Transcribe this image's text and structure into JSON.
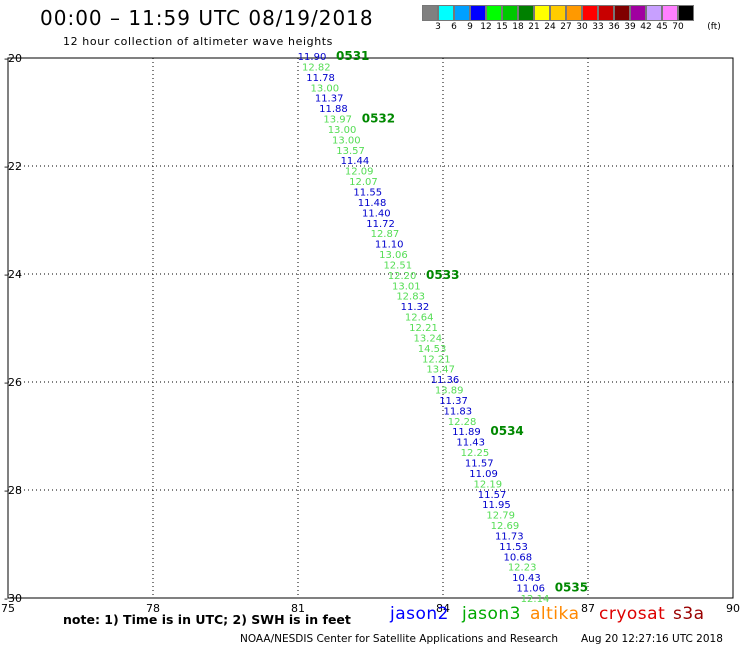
{
  "header": {
    "title": "00:00 – 11:59 UTC 08/19/2018",
    "subtitle": "12 hour collection of altimeter wave heights"
  },
  "scale": {
    "unit": "(ft)",
    "labels": [
      "3",
      "6",
      "9",
      "12",
      "15",
      "18",
      "21",
      "24",
      "27",
      "30",
      "33",
      "36",
      "39",
      "42",
      "45",
      "70"
    ],
    "colors": [
      "#808080",
      "#00ffff",
      "#00a0ff",
      "#0000ff",
      "#00ff00",
      "#00c800",
      "#008000",
      "#ffff00",
      "#ffcc00",
      "#ff9900",
      "#ff0000",
      "#c80000",
      "#800000",
      "#a000a0",
      "#c8a0ff",
      "#ff80ff",
      "#000000"
    ]
  },
  "map": {
    "lon_ticks": [
      "75",
      "78",
      "81",
      "84",
      "87",
      "90"
    ],
    "lat_ticks": [
      "-20",
      "-22",
      "-24",
      "-26",
      "-28",
      "-30"
    ],
    "lon_range": [
      75,
      90
    ],
    "lat_range": [
      -20,
      -30
    ],
    "colors": {
      "jason2": "#0000cc",
      "jason3": "#55dd55",
      "pass_label": "#008800"
    },
    "observations": [
      {
        "v": "11.90",
        "c": "j2"
      },
      {
        "v": "12.82",
        "c": "j3"
      },
      {
        "v": "11.78",
        "c": "j2"
      },
      {
        "v": "13.00",
        "c": "j3"
      },
      {
        "v": "11.37",
        "c": "j2"
      },
      {
        "v": "11.88",
        "c": "j2"
      },
      {
        "v": "13.97",
        "c": "j3"
      },
      {
        "v": "13.00",
        "c": "j3"
      },
      {
        "v": "13.00",
        "c": "j3"
      },
      {
        "v": "13.57",
        "c": "j3"
      },
      {
        "v": "11.44",
        "c": "j2"
      },
      {
        "v": "12.09",
        "c": "j3"
      },
      {
        "v": "12.07",
        "c": "j3"
      },
      {
        "v": "11.55",
        "c": "j2"
      },
      {
        "v": "11.48",
        "c": "j2"
      },
      {
        "v": "11.40",
        "c": "j2"
      },
      {
        "v": "11.72",
        "c": "j2"
      },
      {
        "v": "12.87",
        "c": "j3"
      },
      {
        "v": "11.10",
        "c": "j2"
      },
      {
        "v": "13.06",
        "c": "j3"
      },
      {
        "v": "12.51",
        "c": "j3"
      },
      {
        "v": "12.20",
        "c": "j3"
      },
      {
        "v": "13.01",
        "c": "j3"
      },
      {
        "v": "12.83",
        "c": "j3"
      },
      {
        "v": "11.32",
        "c": "j2"
      },
      {
        "v": "12.64",
        "c": "j3"
      },
      {
        "v": "12.21",
        "c": "j3"
      },
      {
        "v": "13.24",
        "c": "j3"
      },
      {
        "v": "14.53",
        "c": "j3"
      },
      {
        "v": "12.21",
        "c": "j3"
      },
      {
        "v": "13.47",
        "c": "j3"
      },
      {
        "v": "11.36",
        "c": "j2"
      },
      {
        "v": "13.89",
        "c": "j3"
      },
      {
        "v": "11.37",
        "c": "j2"
      },
      {
        "v": "11.83",
        "c": "j2"
      },
      {
        "v": "12.28",
        "c": "j3"
      },
      {
        "v": "11.89",
        "c": "j2"
      },
      {
        "v": "11.43",
        "c": "j2"
      },
      {
        "v": "12.25",
        "c": "j3"
      },
      {
        "v": "11.57",
        "c": "j2"
      },
      {
        "v": "11.09",
        "c": "j2"
      },
      {
        "v": "12.19",
        "c": "j3"
      },
      {
        "v": "11.57",
        "c": "j2"
      },
      {
        "v": "11.95",
        "c": "j2"
      },
      {
        "v": "12.79",
        "c": "j3"
      },
      {
        "v": "12.69",
        "c": "j3"
      },
      {
        "v": "11.73",
        "c": "j2"
      },
      {
        "v": "11.53",
        "c": "j2"
      },
      {
        "v": "10.68",
        "c": "j2"
      },
      {
        "v": "12.23",
        "c": "j3"
      },
      {
        "v": "10.43",
        "c": "j2"
      },
      {
        "v": "11.06",
        "c": "j2"
      },
      {
        "v": "12.14",
        "c": "j3"
      }
    ],
    "pass_labels": [
      {
        "text": "0531",
        "obs": 0
      },
      {
        "text": "0532",
        "obs": 6
      },
      {
        "text": "0533",
        "obs": 21
      },
      {
        "text": "0534",
        "obs": 36
      },
      {
        "text": "0535",
        "obs": 51
      }
    ]
  },
  "footer": {
    "note": "note: 1) Time is in UTC; 2) SWH is in feet",
    "satellites": [
      {
        "name": "jason2",
        "color": "#0000ff"
      },
      {
        "name": "jason3",
        "color": "#00aa00"
      },
      {
        "name": "altika",
        "color": "#ff8800"
      },
      {
        "name": "cryosat",
        "color": "#dd0000"
      },
      {
        "name": "s3a",
        "color": "#990000"
      }
    ],
    "credit": "NOAA/NESDIS Center for Satellite Applications and Research",
    "timestamp": "Aug 20 12:27:16 UTC 2018"
  }
}
